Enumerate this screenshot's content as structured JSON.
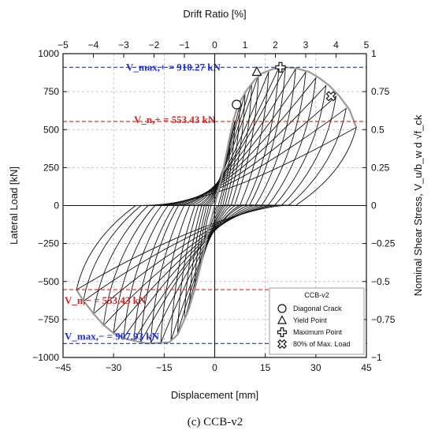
{
  "caption": "(c) CCB-v2",
  "chart_data": {
    "type": "line",
    "xlabel": "Displacement [mm]",
    "ylabel": "Lateral Load [kN]",
    "x2label": "Drift Ratio [%]",
    "y2label": "Nominal Shear Stress, V_u/b_w d √f_ck",
    "xlim": [
      -45,
      45
    ],
    "ylim": [
      -1000,
      1000
    ],
    "x2lim": [
      -5,
      5
    ],
    "y2lim": [
      -1,
      1
    ],
    "xticks": [
      -45,
      -30,
      -15,
      0,
      15,
      30,
      45
    ],
    "yticks": [
      -1000,
      -750,
      -500,
      -250,
      0,
      250,
      500,
      750,
      1000
    ],
    "x2ticks": [
      -5,
      -4,
      -3,
      -2,
      -1,
      0,
      1,
      2,
      3,
      4,
      5
    ],
    "y2ticks": [
      -1,
      -0.75,
      -0.5,
      -0.25,
      0,
      0.25,
      0.5,
      0.75,
      1
    ],
    "y2ticklabels": [
      "−1",
      "−0.75",
      "−0.5",
      "−0.25",
      "0",
      "0.25",
      "0.5",
      "0.75",
      "1"
    ],
    "grid": true,
    "legend": {
      "title": "CCB-v2",
      "position": "bottom-right",
      "entries": [
        {
          "marker": "circle",
          "label": "Diagonal Crack"
        },
        {
          "marker": "triangle",
          "label": "Yield Point"
        },
        {
          "marker": "plus",
          "label": "Maximum Point"
        },
        {
          "marker": "cross",
          "label": "80% of Max. Load"
        }
      ]
    },
    "reference_lines": [
      {
        "label": "V_max,+ = 910.27 kN",
        "y": 910.27,
        "color": "#1f2fd8"
      },
      {
        "label": "V_n,+ = 553.43 kN",
        "y": 553.43,
        "color": "#e02020"
      },
      {
        "label": "V_n,− = 553.43 kN",
        "y": -553.43,
        "color": "#e02020"
      },
      {
        "label": "V_max,− = 907.93 kN",
        "y": -907.93,
        "color": "#1f2fd8"
      }
    ],
    "envelope": {
      "color": "#9a9a9a",
      "positive": [
        [
          0,
          0
        ],
        [
          2,
          180
        ],
        [
          4,
          400
        ],
        [
          5.5,
          560
        ],
        [
          7,
          665
        ],
        [
          9.5,
          760
        ],
        [
          12,
          830
        ],
        [
          14,
          870
        ],
        [
          18,
          905
        ],
        [
          21,
          910
        ],
        [
          24,
          905
        ],
        [
          28,
          880
        ],
        [
          31,
          840
        ],
        [
          34,
          790
        ],
        [
          37,
          720
        ],
        [
          40,
          630
        ],
        [
          42,
          515
        ]
      ],
      "negative": [
        [
          0,
          0
        ],
        [
          -2,
          -170
        ],
        [
          -4,
          -380
        ],
        [
          -6,
          -560
        ],
        [
          -8,
          -700
        ],
        [
          -11,
          -850
        ],
        [
          -13.5,
          -900
        ],
        [
          -20,
          -908
        ],
        [
          -26,
          -880
        ],
        [
          -30,
          -840
        ],
        [
          -33,
          -785
        ],
        [
          -36,
          -710
        ],
        [
          -39,
          -625
        ],
        [
          -41,
          -555
        ]
      ]
    },
    "hysteresis_peaks": [
      {
        "xp": 3,
        "yp": 220,
        "xn": -3,
        "yn": -220
      },
      {
        "xp": 4.5,
        "yp": 380,
        "xn": -4.5,
        "yn": -380
      },
      {
        "xp": 6,
        "yp": 560,
        "xn": -6,
        "yn": -560
      },
      {
        "xp": 7.5,
        "yp": 665,
        "xn": -7.5,
        "yn": -680
      },
      {
        "xp": 9,
        "yp": 740,
        "xn": -9,
        "yn": -760
      },
      {
        "xp": 11,
        "yp": 810,
        "xn": -11,
        "yn": -840
      },
      {
        "xp": 13,
        "yp": 860,
        "xn": -13,
        "yn": -890
      },
      {
        "xp": 16,
        "yp": 880,
        "xn": -16,
        "yn": -905
      },
      {
        "xp": 19,
        "yp": 905,
        "xn": -19,
        "yn": -908
      },
      {
        "xp": 21,
        "yp": 910,
        "xn": -22,
        "yn": -900
      },
      {
        "xp": 24,
        "yp": 900,
        "xn": -24,
        "yn": -890
      },
      {
        "xp": 27,
        "yp": 880,
        "xn": -27,
        "yn": -870
      },
      {
        "xp": 30,
        "yp": 840,
        "xn": -30,
        "yn": -840
      },
      {
        "xp": 33,
        "yp": 790,
        "xn": -33,
        "yn": -790
      },
      {
        "xp": 36,
        "yp": 720,
        "xn": -36,
        "yn": -715
      },
      {
        "xp": 39,
        "yp": 640,
        "xn": -39,
        "yn": -630
      },
      {
        "xp": 42,
        "yp": 515,
        "xn": -41,
        "yn": -555
      }
    ],
    "markers": [
      {
        "type": "circle",
        "x": 6.5,
        "y": 665
      },
      {
        "type": "triangle",
        "x": 12.5,
        "y": 880
      },
      {
        "type": "plus",
        "x": 19.5,
        "y": 910
      },
      {
        "type": "cross",
        "x": 34.5,
        "y": 720
      }
    ]
  }
}
